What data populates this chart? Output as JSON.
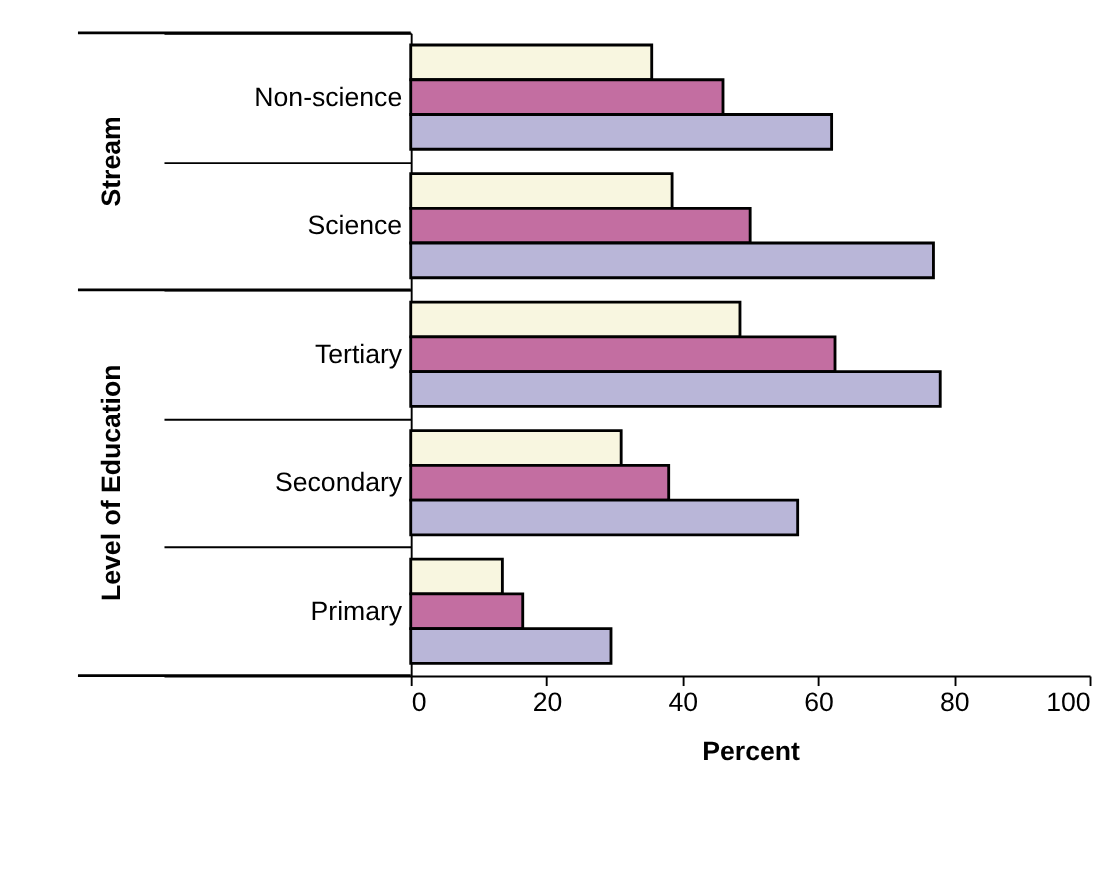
{
  "chart_data": {
    "type": "bar",
    "orientation": "horizontal",
    "xlabel": "Percent",
    "categories": [
      "Non-science",
      "Science",
      "Tertiary",
      "Secondary",
      "Primary"
    ],
    "series": [
      {
        "color": "#f8f6e0",
        "values": [
          35.5,
          38.5,
          48.5,
          31,
          13.5
        ]
      },
      {
        "color": "#c36ea1",
        "values": [
          46,
          50,
          62.5,
          38,
          16.5
        ]
      },
      {
        "color": "#b9b6d8",
        "values": [
          62,
          77,
          78,
          57,
          29.5
        ]
      }
    ],
    "xlim": [
      0,
      100
    ],
    "xticks": [
      0,
      20,
      40,
      60,
      80,
      100
    ],
    "grid": false,
    "annotations": [
      "Stream",
      "Level of Education"
    ]
  }
}
